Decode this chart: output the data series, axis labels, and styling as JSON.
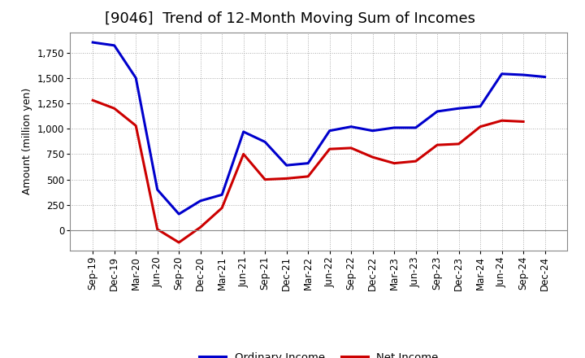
{
  "title": "[9046]  Trend of 12-Month Moving Sum of Incomes",
  "ylabel": "Amount (million yen)",
  "x_labels": [
    "Sep-19",
    "Dec-19",
    "Mar-20",
    "Jun-20",
    "Sep-20",
    "Dec-20",
    "Mar-21",
    "Jun-21",
    "Sep-21",
    "Dec-21",
    "Mar-22",
    "Jun-22",
    "Sep-22",
    "Dec-22",
    "Mar-23",
    "Jun-23",
    "Sep-23",
    "Dec-23",
    "Mar-24",
    "Jun-24",
    "Sep-24",
    "Dec-24"
  ],
  "ordinary_income": [
    1850,
    1820,
    1500,
    400,
    160,
    290,
    350,
    970,
    870,
    640,
    660,
    980,
    1020,
    980,
    1010,
    1010,
    1170,
    1200,
    1220,
    1540,
    1530,
    1510
  ],
  "net_income": [
    1280,
    1200,
    1030,
    10,
    -120,
    30,
    220,
    750,
    500,
    510,
    530,
    800,
    810,
    720,
    660,
    680,
    840,
    850,
    1020,
    1080,
    1070,
    null
  ],
  "ordinary_color": "#0000CC",
  "net_color": "#CC0000",
  "ylim_min": -200,
  "ylim_max": 1950,
  "yticks": [
    0,
    250,
    500,
    750,
    1000,
    1250,
    1500,
    1750
  ],
  "ytick_labels": [
    "0",
    "250",
    "500",
    "750",
    "1,000",
    "1,250",
    "1,500",
    "1,750"
  ],
  "background_color": "#ffffff",
  "grid_color": "#aaaaaa",
  "legend_ordinary": "Ordinary Income",
  "legend_net": "Net Income",
  "title_fontsize": 13,
  "ylabel_fontsize": 9,
  "tick_fontsize": 8.5,
  "line_width": 2.2
}
